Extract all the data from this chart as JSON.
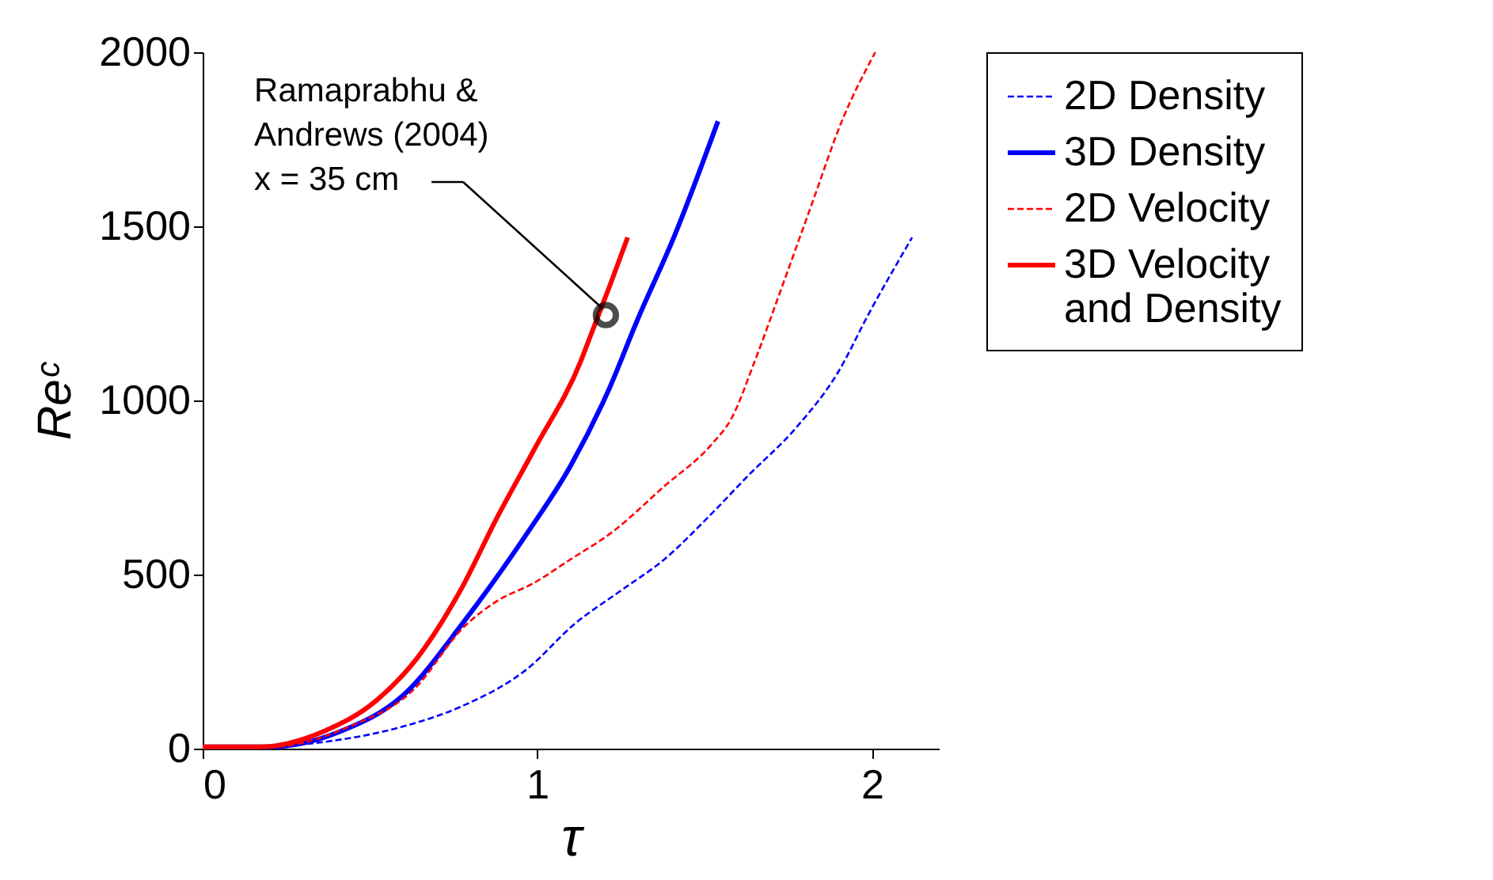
{
  "chart_data": {
    "type": "line",
    "xlabel": "τ",
    "ylabel": "Reᶜ",
    "xlim": [
      0,
      2.2
    ],
    "ylim": [
      0,
      2000
    ],
    "xticks": [
      0,
      1,
      2
    ],
    "yticks": [
      0,
      500,
      1000,
      1500,
      2000
    ],
    "grid": false,
    "legend": "right",
    "series": [
      {
        "name": "2D Density",
        "color": "#0000ff",
        "line_style": "dashed",
        "x": [
          0,
          0.13,
          0.36,
          0.6,
          0.78,
          0.97,
          1.11,
          1.25,
          1.38,
          1.51,
          1.63,
          1.77,
          1.9,
          1.99,
          2.12
        ],
        "values": [
          5,
          5,
          19,
          64,
          124,
          229,
          357,
          454,
          544,
          664,
          784,
          918,
          1083,
          1248,
          1468
        ]
      },
      {
        "name": "3D Density",
        "color": "#0000ff",
        "line_style": "solid",
        "x": [
          0,
          0.2,
          0.41,
          0.6,
          0.78,
          0.97,
          1.1,
          1.21,
          1.3,
          1.41,
          1.54
        ],
        "values": [
          5,
          5,
          49,
          154,
          364,
          619,
          813,
          1023,
          1233,
          1473,
          1802
        ]
      },
      {
        "name": "2D Velocity",
        "color": "#ff0000",
        "line_style": "dashed",
        "x": [
          0,
          0.2,
          0.44,
          0.63,
          0.78,
          0.88,
          0.99,
          1.1,
          1.22,
          1.38,
          1.52,
          1.58,
          1.65,
          1.73,
          1.82,
          1.91,
          2.01
        ],
        "values": [
          5,
          5,
          64,
          169,
          349,
          424,
          476,
          544,
          619,
          754,
          873,
          948,
          1113,
          1323,
          1563,
          1802,
          2000
        ]
      },
      {
        "name": "3D Velocity and Density",
        "color": "#ff0000",
        "line_style": "solid",
        "x": [
          0,
          0.17,
          0.36,
          0.52,
          0.64,
          0.77,
          0.88,
          0.99,
          1.13,
          1.16,
          1.22,
          1.27
        ],
        "values": [
          5,
          5,
          49,
          139,
          259,
          454,
          664,
          858,
          1113,
          1188,
          1338,
          1468
        ]
      },
      {
        "type": "scatter",
        "color": "#000000",
        "marker": "circle",
        "x": [
          1.205
        ],
        "values": [
          1245
        ]
      }
    ],
    "annotations": [
      {
        "text": "Ramaprabhu & Andrews (2004) x = 35 cm",
        "x": 1.205,
        "y": 1245
      }
    ]
  }
}
